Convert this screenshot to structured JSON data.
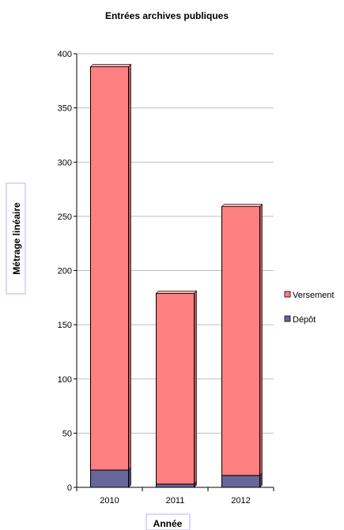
{
  "chart_data": {
    "type": "bar",
    "stacked": true,
    "title": "Entrées archives publiques",
    "xlabel": "Année",
    "ylabel": "Métrage linéaire",
    "categories": [
      "2010",
      "2011",
      "2012"
    ],
    "series": [
      {
        "name": "Dépôt",
        "values": [
          16,
          3,
          11
        ],
        "color": "#666699"
      },
      {
        "name": "Versement",
        "values": [
          372,
          176,
          248
        ],
        "color": "#ff8080"
      }
    ],
    "ylim": [
      0,
      400
    ],
    "yticks": [
      0,
      50,
      100,
      150,
      200,
      250,
      300,
      350,
      400
    ],
    "ytick_labels": [
      "0",
      "50",
      "100",
      "150",
      "200",
      "250",
      "300",
      "350",
      "400"
    ],
    "grid": true,
    "legend": "right",
    "legend_order": [
      "Versement",
      "Dépôt"
    ]
  }
}
